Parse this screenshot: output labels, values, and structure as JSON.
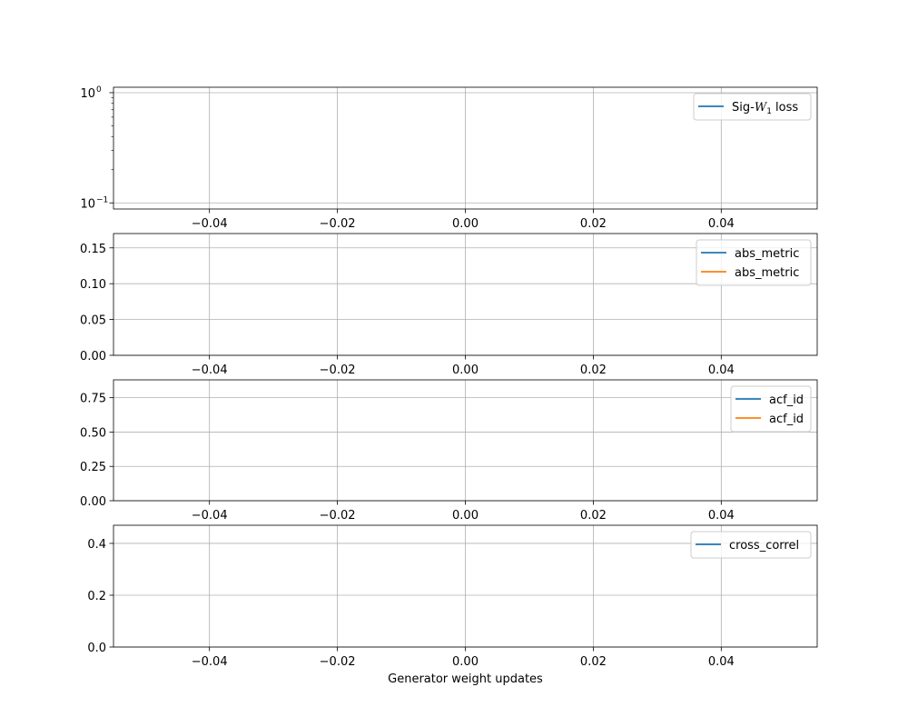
{
  "chart_data": [
    {
      "type": "line",
      "yscale": "log",
      "xlim": [
        -0.055,
        0.055
      ],
      "ylim": [
        0.088,
        1.12
      ],
      "xticks": [
        -0.04,
        -0.02,
        0.0,
        0.02,
        0.04
      ],
      "xtick_labels": [
        "−0.04",
        "−0.02",
        "0.00",
        "0.02",
        "0.04"
      ],
      "yticks": [
        0.1,
        1
      ],
      "grid": true,
      "legend_position": "top-right",
      "series": [
        {
          "name": "Sig-W₁ loss",
          "name_main": "Sig-",
          "name_var": "W",
          "name_sub": "1",
          "name_tail": " loss",
          "color": "#1f77b4",
          "values": []
        }
      ]
    },
    {
      "type": "line",
      "xlim": [
        -0.055,
        0.055
      ],
      "ylim": [
        0,
        0.17
      ],
      "xticks": [
        -0.04,
        -0.02,
        0.0,
        0.02,
        0.04
      ],
      "xtick_labels": [
        "−0.04",
        "−0.02",
        "0.00",
        "0.02",
        "0.04"
      ],
      "yticks": [
        0,
        0.05,
        0.1,
        0.15
      ],
      "ytick_labels": [
        "0.00",
        "0.05",
        "0.10",
        "0.15"
      ],
      "grid": true,
      "legend_position": "top-right",
      "series": [
        {
          "name": "abs_metric",
          "color": "#1f77b4",
          "values": []
        },
        {
          "name": "abs_metric",
          "color": "#ff7f0e",
          "values": []
        }
      ]
    },
    {
      "type": "line",
      "xlim": [
        -0.055,
        0.055
      ],
      "ylim": [
        0,
        0.88
      ],
      "xticks": [
        -0.04,
        -0.02,
        0.0,
        0.02,
        0.04
      ],
      "xtick_labels": [
        "−0.04",
        "−0.02",
        "0.00",
        "0.02",
        "0.04"
      ],
      "yticks": [
        0,
        0.25,
        0.5,
        0.75
      ],
      "ytick_labels": [
        "0.00",
        "0.25",
        "0.50",
        "0.75"
      ],
      "grid": true,
      "legend_position": "top-right",
      "series": [
        {
          "name": "acf_id",
          "color": "#1f77b4",
          "values": []
        },
        {
          "name": "acf_id",
          "color": "#ff7f0e",
          "values": []
        }
      ]
    },
    {
      "type": "line",
      "xlim": [
        -0.055,
        0.055
      ],
      "ylim": [
        0,
        0.47
      ],
      "xticks": [
        -0.04,
        -0.02,
        0.0,
        0.02,
        0.04
      ],
      "xtick_labels": [
        "−0.04",
        "−0.02",
        "0.00",
        "0.02",
        "0.04"
      ],
      "yticks": [
        0,
        0.2,
        0.4
      ],
      "ytick_labels": [
        "0.0",
        "0.2",
        "0.4"
      ],
      "grid": true,
      "legend_position": "top-right",
      "xlabel": "Generator weight updates",
      "series": [
        {
          "name": "cross_correl",
          "color": "#1f77b4",
          "values": []
        }
      ]
    }
  ]
}
